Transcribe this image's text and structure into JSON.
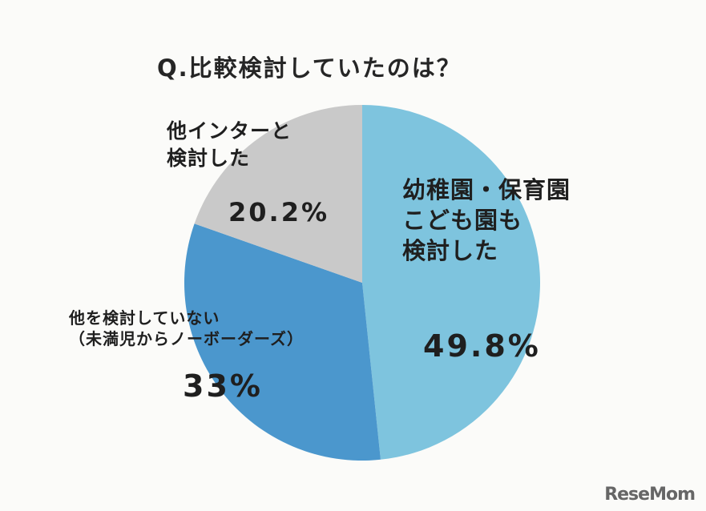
{
  "chart_data": {
    "type": "pie",
    "title": "Q.比較検討していたのは？",
    "categories": [
      "幼稚園・保育園\nこども園も\n検討した",
      "他を検討していない\n（未満児からノーボーダーズ）",
      "他インターと\n検討した"
    ],
    "values": [
      49.8,
      33,
      20.2
    ],
    "value_labels": [
      "49.8%",
      "33%",
      "20.2%"
    ],
    "colors": [
      "#7ec4de",
      "#4b97cd",
      "#c9c9c9"
    ],
    "start_angle": "12 o'clock",
    "direction": "clockwise",
    "legend": "none"
  },
  "watermark": "ReseMom"
}
